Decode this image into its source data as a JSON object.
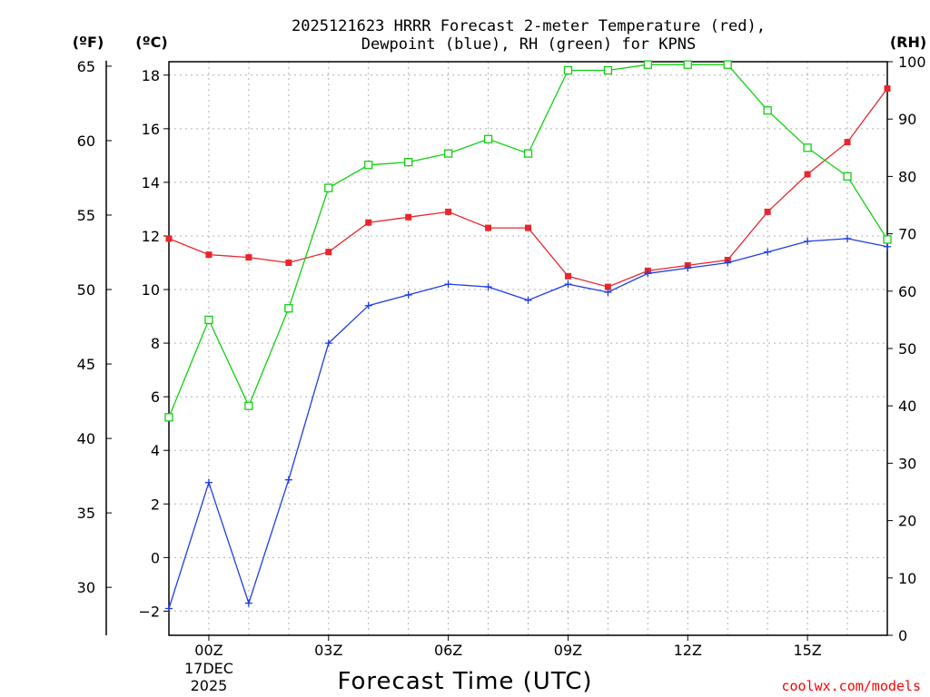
{
  "title_line1": "2025121623 HRRR Forecast 2-meter Temperature (red),",
  "title_line2": "Dewpoint (blue), RH (green) for KPNS",
  "units": {
    "f": "(ºF)",
    "c": "(ºC)",
    "rh": "(RH)"
  },
  "xlabel": "Forecast Time (UTC)",
  "credit": "coolwx.com/models",
  "colors": {
    "temperature": "#e8262b",
    "dewpoint": "#1e3de6",
    "rh": "#10d010"
  },
  "chart_data": {
    "type": "line",
    "title": "2025121623 HRRR Forecast 2-meter Temperature (red), Dewpoint (blue), RH (green) for KPNS",
    "xlabel": "Forecast Time (UTC)",
    "x_hours": [
      -1,
      0,
      1,
      2,
      3,
      4,
      5,
      6,
      7,
      8,
      9,
      10,
      11,
      12,
      13,
      14,
      15,
      16,
      17
    ],
    "xlim": [
      -1,
      17
    ],
    "x_ticks": [
      {
        "hour": 0,
        "label": "00Z",
        "sub": [
          "17DEC",
          "2025"
        ]
      },
      {
        "hour": 3,
        "label": "03Z",
        "sub": []
      },
      {
        "hour": 6,
        "label": "06Z",
        "sub": []
      },
      {
        "hour": 9,
        "label": "09Z",
        "sub": []
      },
      {
        "hour": 12,
        "label": "12Z",
        "sub": []
      },
      {
        "hour": 15,
        "label": "15Z",
        "sub": []
      }
    ],
    "ylim_c": [
      -2.9,
      18.5
    ],
    "y_ticks_c": [
      -2,
      0,
      2,
      4,
      6,
      8,
      10,
      12,
      14,
      16,
      18
    ],
    "y_ticks_f": [
      30,
      35,
      40,
      45,
      50,
      55,
      60,
      65
    ],
    "ylim_rh": [
      0,
      100
    ],
    "y_ticks_rh": [
      0,
      10,
      20,
      30,
      40,
      50,
      60,
      70,
      80,
      90,
      100
    ],
    "series": [
      {
        "name": "Temperature",
        "axis": "c",
        "marker": "square-filled",
        "colorKey": "temperature",
        "values": [
          11.9,
          11.3,
          11.2,
          11.0,
          11.4,
          12.5,
          12.7,
          12.9,
          12.3,
          12.3,
          10.5,
          10.1,
          10.7,
          10.9,
          11.1,
          12.9,
          14.3,
          15.5,
          17.5
        ]
      },
      {
        "name": "Dewpoint",
        "axis": "c",
        "marker": "plus",
        "colorKey": "dewpoint",
        "values": [
          -1.9,
          2.8,
          -1.7,
          2.9,
          8.0,
          9.4,
          9.8,
          10.2,
          10.1,
          9.6,
          10.2,
          9.9,
          10.6,
          10.8,
          11.0,
          11.4,
          11.8,
          11.9,
          11.6
        ]
      },
      {
        "name": "RH",
        "axis": "rh",
        "marker": "square-open",
        "colorKey": "rh",
        "values": [
          38,
          55,
          40,
          57,
          78,
          82,
          82.5,
          84,
          86.5,
          84,
          98.5,
          98.5,
          99.5,
          99.5,
          99.5,
          91.5,
          85,
          80,
          69
        ]
      }
    ]
  }
}
